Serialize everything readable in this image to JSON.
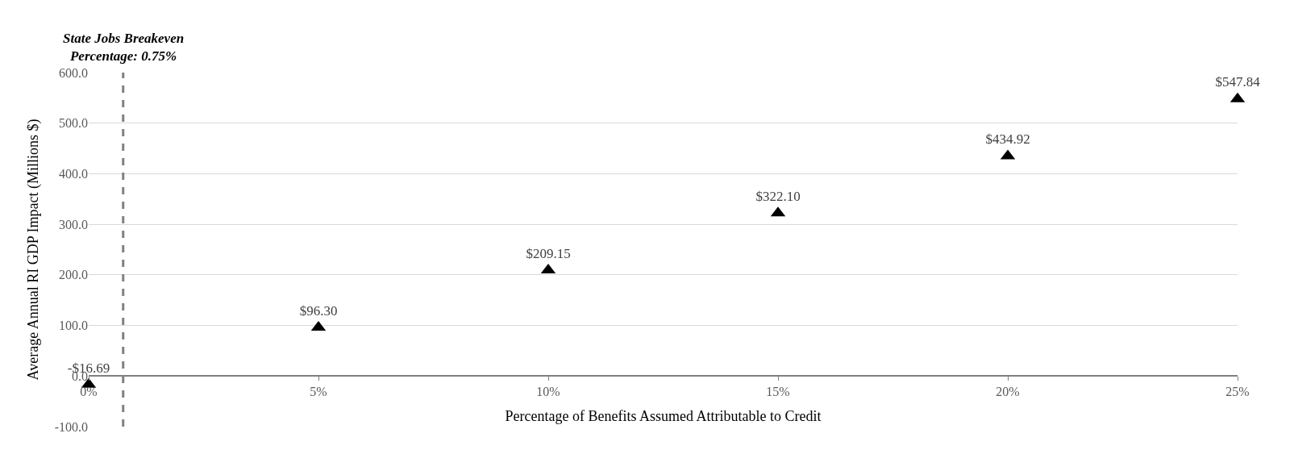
{
  "chart_data": {
    "type": "scatter",
    "xlabel": "Percentage of Benefits Assumed Attributable to Credit",
    "ylabel": "Average Annual RI GDP Impact (Millions $)",
    "x": [
      0,
      5,
      10,
      15,
      20,
      25
    ],
    "series": [
      {
        "color": "#000000",
        "values": [
          -16.69,
          96.3,
          209.15,
          322.1,
          434.92,
          547.84
        ],
        "value_labels": [
          "-$16.69",
          "$96.30",
          "$209.15",
          "$322.10",
          "$434.92",
          "$547.84"
        ]
      }
    ],
    "xlim": [
      0,
      25
    ],
    "xticks": [
      {
        "value": 0,
        "label": "0%"
      },
      {
        "value": 5,
        "label": "5%"
      },
      {
        "value": 10,
        "label": "10%"
      },
      {
        "value": 15,
        "label": "15%"
      },
      {
        "value": 20,
        "label": "20%"
      },
      {
        "value": 25,
        "label": "25%"
      }
    ],
    "ylim": [
      -100,
      600
    ],
    "yticks": [
      {
        "value": -100,
        "label": "-100.0"
      },
      {
        "value": 0,
        "label": "0.0"
      },
      {
        "value": 100,
        "label": "100.0"
      },
      {
        "value": 200,
        "label": "200.0"
      },
      {
        "value": 300,
        "label": "300.0"
      },
      {
        "value": 400,
        "label": "400.0"
      },
      {
        "value": 500,
        "label": "500.0"
      },
      {
        "value": 600,
        "label": "600.0"
      }
    ],
    "ref_lines": [
      {
        "axis": "x",
        "value": 0.75,
        "label": "State Jobs Breakeven\nPercentage: 0.75%",
        "color": "#808080",
        "line_style": "dashed"
      }
    ],
    "grid": "y",
    "legend": false,
    "marker": "triangle"
  }
}
